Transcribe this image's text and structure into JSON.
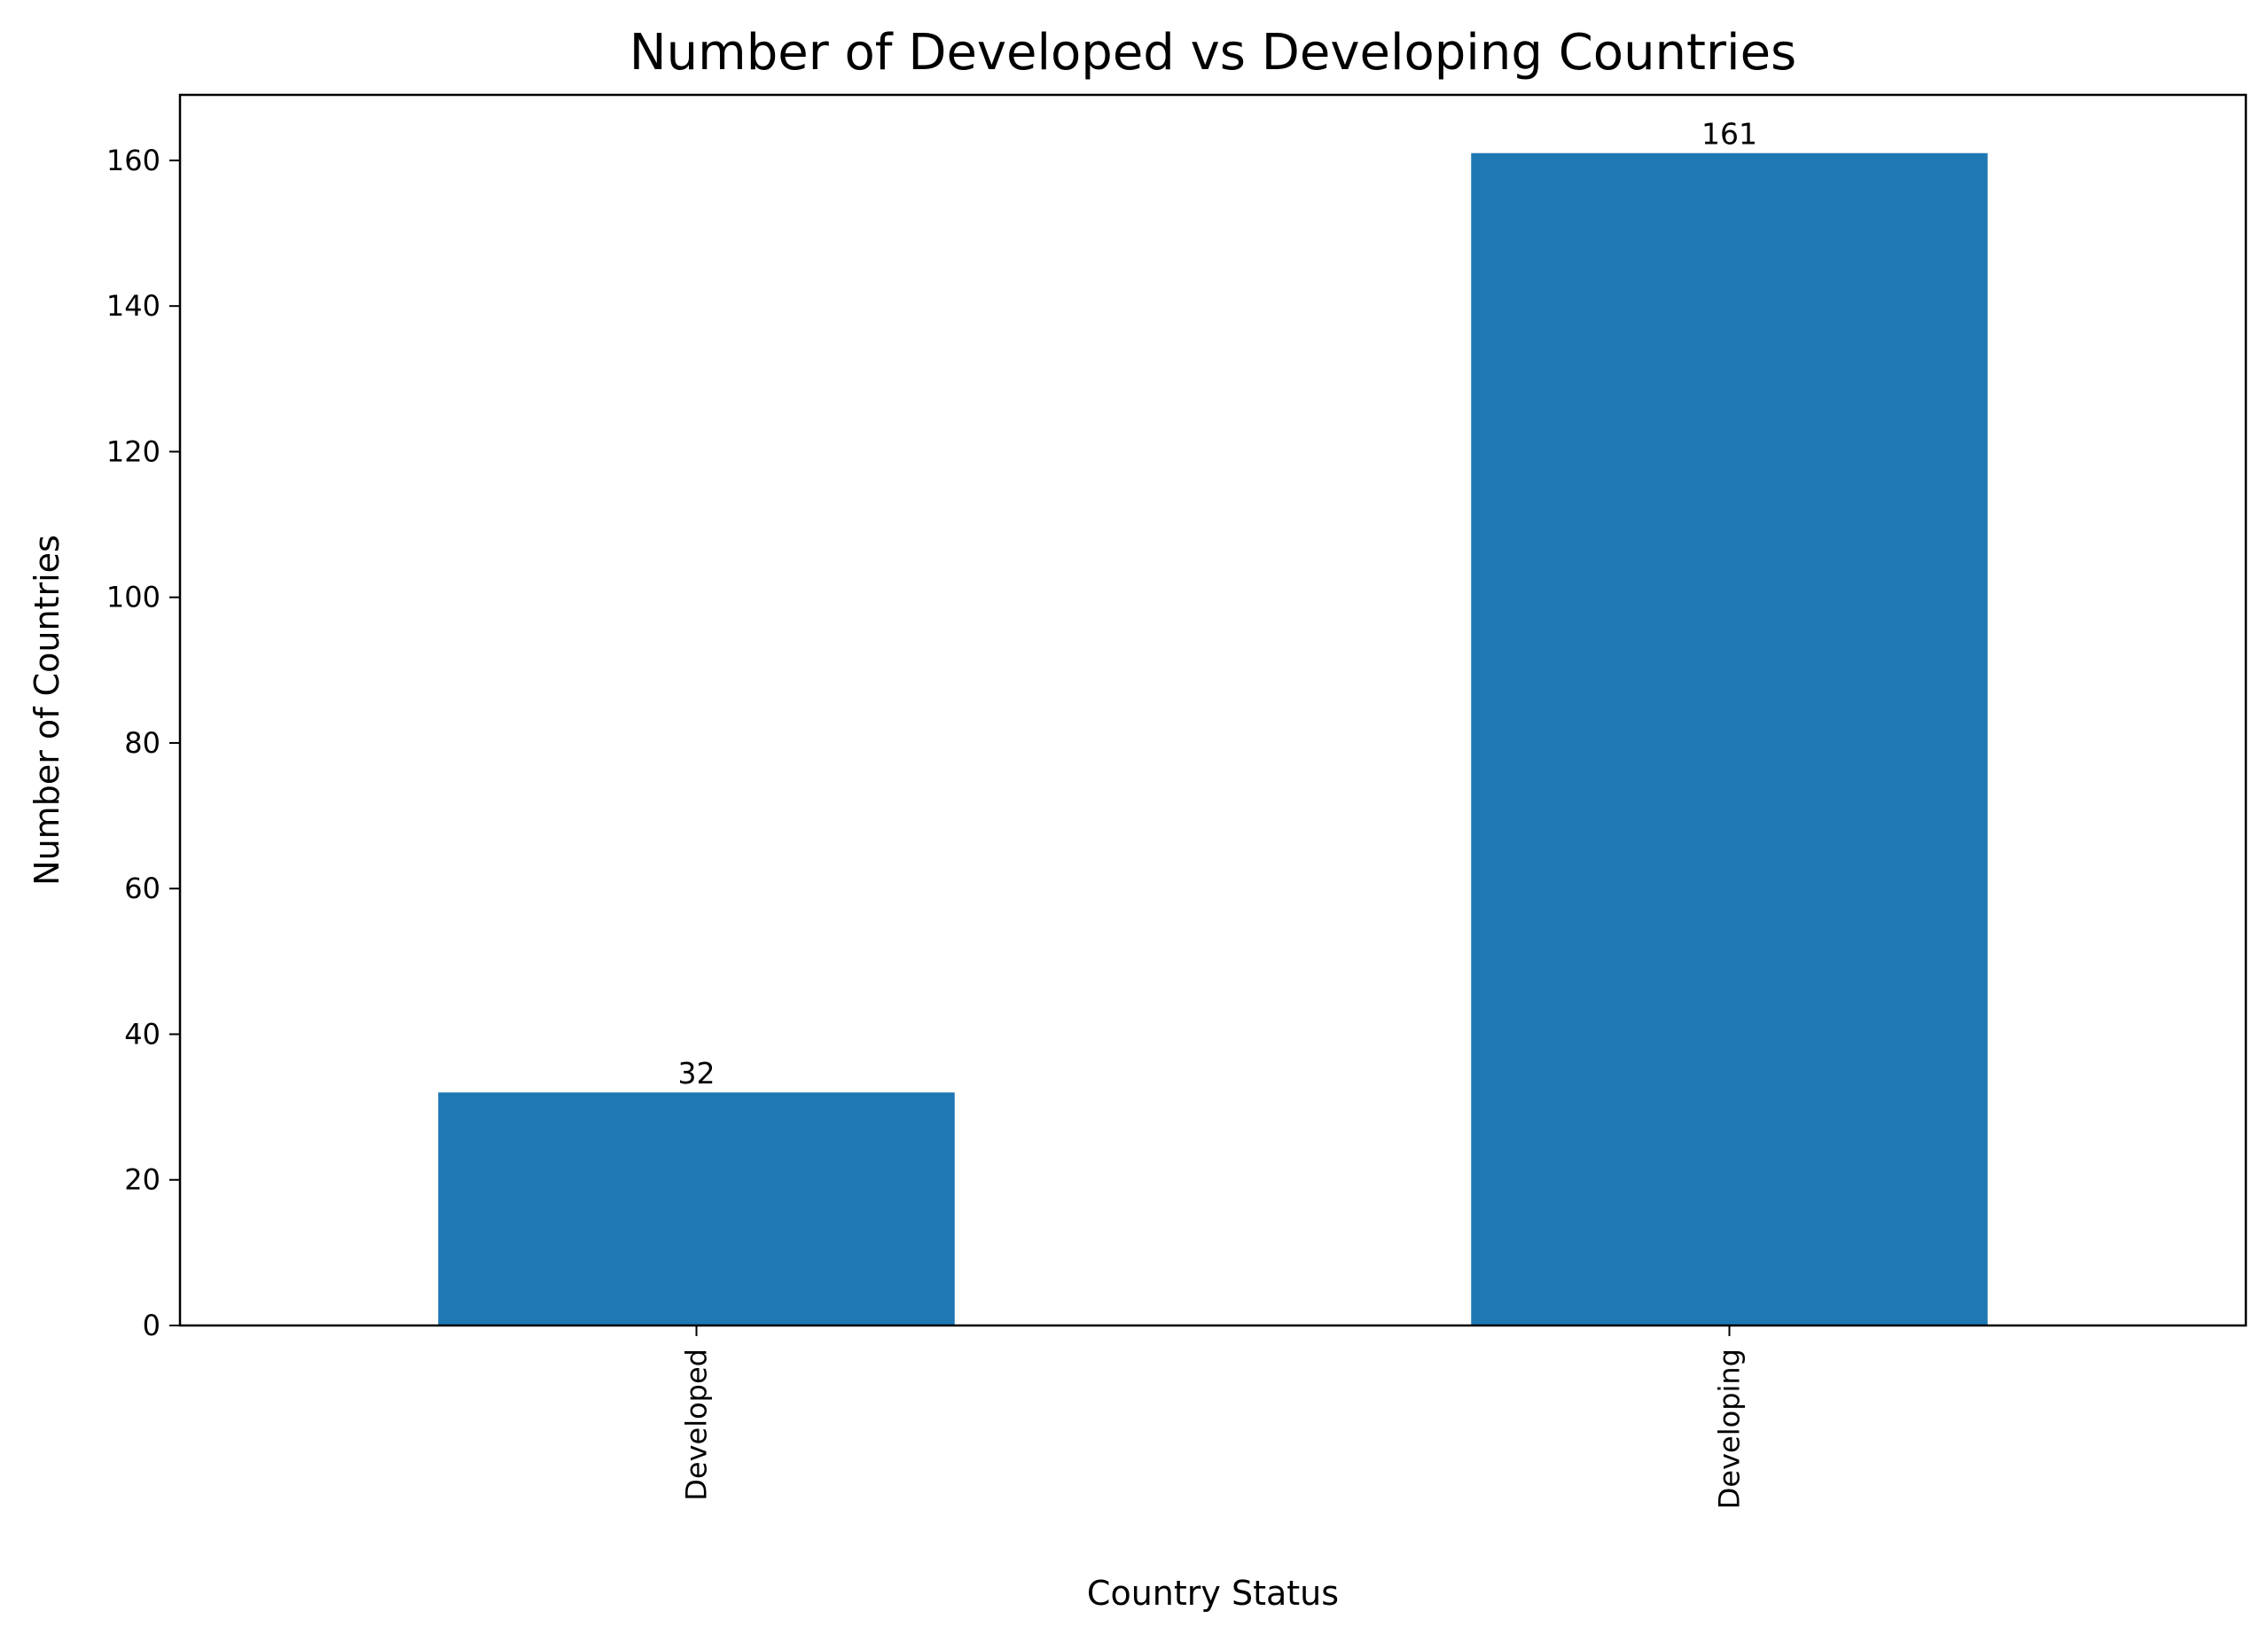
{
  "chart_data": {
    "type": "bar",
    "title": "Number of Developed vs Developing Countries",
    "xlabel": "Country Status",
    "ylabel": "Number of Countries",
    "categories": [
      "Developed",
      "Developing"
    ],
    "values": [
      32,
      161
    ],
    "data_labels": [
      "32",
      "161"
    ],
    "ylim": [
      0,
      169
    ],
    "yticks": [
      0,
      20,
      40,
      60,
      80,
      100,
      120,
      140,
      160
    ],
    "ytick_labels": [
      "0",
      "20",
      "40",
      "60",
      "80",
      "100",
      "120",
      "140",
      "160"
    ],
    "grid": false,
    "legend": null,
    "bar_color": "#1f77b4"
  }
}
